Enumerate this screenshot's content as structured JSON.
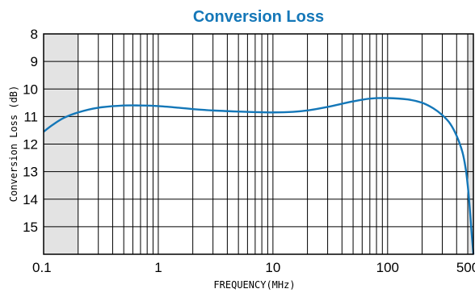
{
  "chart_data": {
    "type": "line",
    "title": "Conversion Loss",
    "xlabel": "FREQUENCY(MHz)",
    "ylabel": "Conversion Loss (dB)",
    "x_scale": "log",
    "xlim": [
      0.1,
      560
    ],
    "ylim": [
      16,
      8
    ],
    "y_inverted": true,
    "grid": true,
    "x_ticks": [
      0.1,
      1,
      10,
      100,
      500
    ],
    "x_tick_labels": [
      "0.1",
      "1",
      "10",
      "100",
      "500"
    ],
    "y_ticks": [
      8,
      9,
      10,
      11,
      12,
      13,
      14,
      15
    ],
    "y_tick_labels": [
      "8",
      "9",
      "10",
      "11",
      "12",
      "13",
      "14",
      "15"
    ],
    "shaded_ranges_x": [
      [
        0.1,
        0.2
      ],
      [
        500,
        560
      ]
    ],
    "line_color": "#1477b8",
    "title_color": "#1477b8",
    "series": [
      {
        "name": "",
        "x": [
          0.1,
          0.12,
          0.15,
          0.2,
          0.3,
          0.5,
          0.7,
          1,
          1.5,
          2,
          3,
          5,
          7,
          10,
          15,
          20,
          30,
          50,
          70,
          100,
          150,
          200,
          250,
          300,
          350,
          400,
          450,
          480,
          500,
          520,
          540,
          560
        ],
        "y": [
          11.55,
          11.3,
          11.05,
          10.85,
          10.68,
          10.6,
          10.6,
          10.62,
          10.68,
          10.73,
          10.78,
          10.82,
          10.84,
          10.85,
          10.83,
          10.78,
          10.65,
          10.45,
          10.35,
          10.33,
          10.38,
          10.5,
          10.7,
          10.95,
          11.25,
          11.7,
          12.3,
          12.9,
          13.5,
          14.3,
          15.2,
          16.0
        ]
      }
    ]
  }
}
